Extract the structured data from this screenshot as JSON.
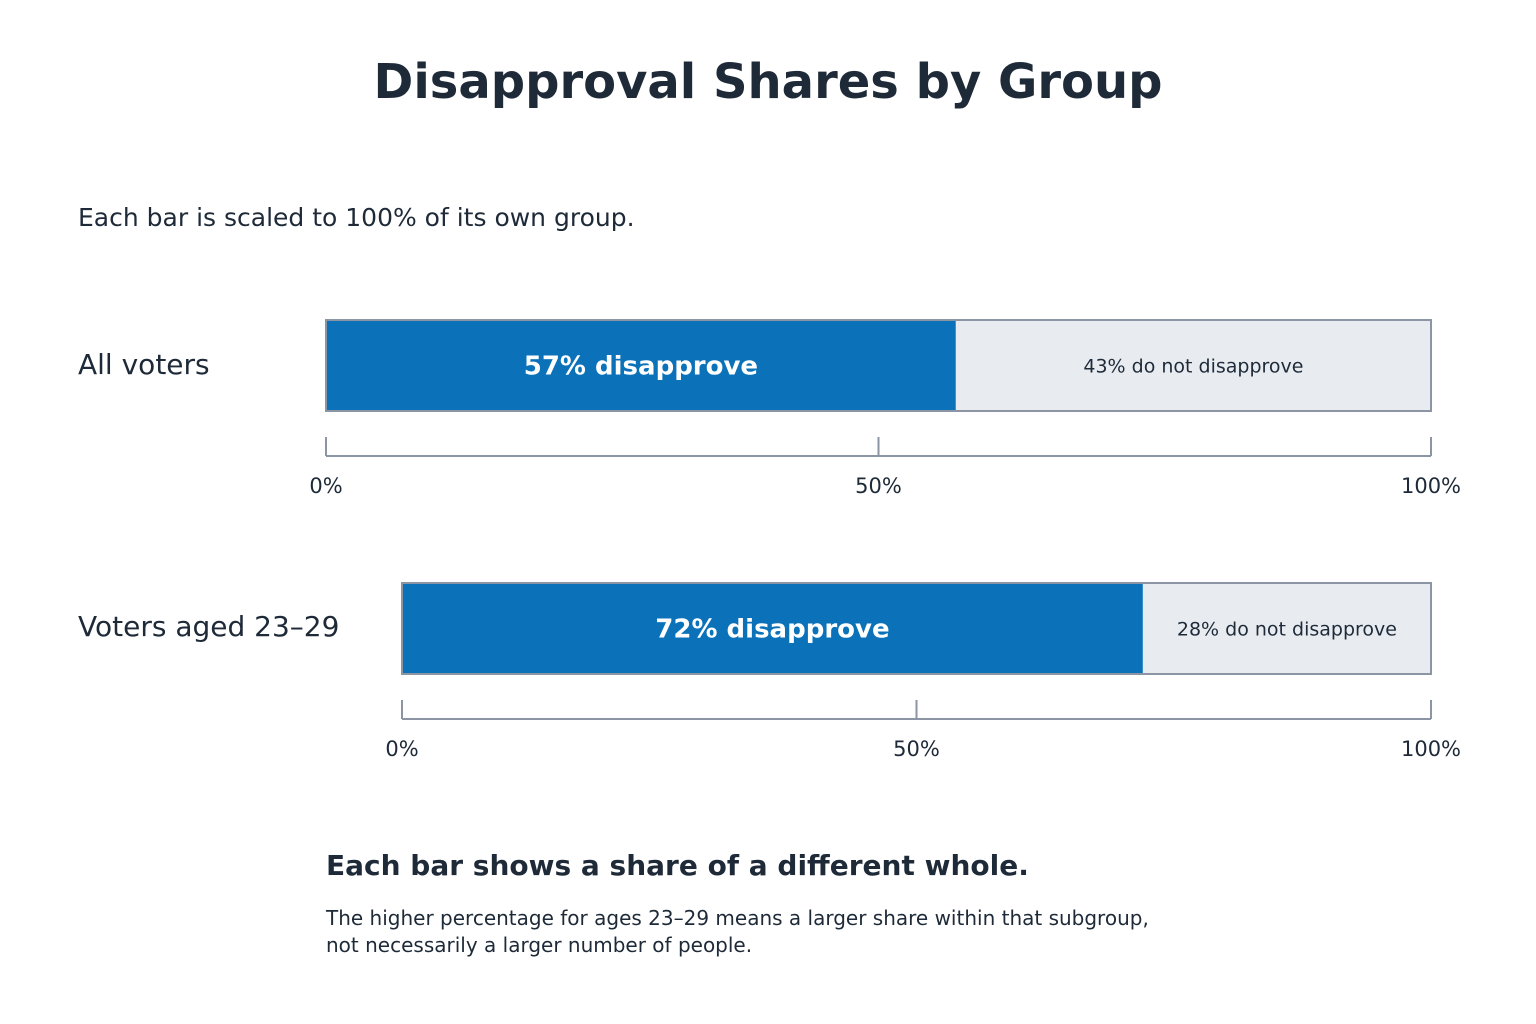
{
  "chart_data": {
    "type": "bar",
    "orientation": "horizontal",
    "stacked": true,
    "title": "Disapproval Shares by Group",
    "subtitle": "Each bar is scaled to 100% of its own group.",
    "categories": [
      "All voters",
      "Voters aged 23–29"
    ],
    "series": [
      {
        "name": "disapprove",
        "values": [
          57,
          72
        ],
        "labels": [
          "57% disapprove",
          "72% disapprove"
        ],
        "color": "#0b72b9"
      },
      {
        "name": "do not disapprove",
        "values": [
          43,
          28
        ],
        "labels": [
          "43% do not disapprove",
          "28% do not disapprove"
        ],
        "color": "#e8ecf1"
      }
    ],
    "xlim": [
      0,
      100
    ],
    "ticks": [
      0,
      50,
      100
    ],
    "tick_labels": [
      "0%",
      "50%",
      "100%"
    ],
    "grid": false,
    "legend": "none",
    "axis_color": "#8b95a3"
  },
  "note": {
    "title": "Each bar shows a share of a different whole.",
    "lines": [
      "The higher percentage for ages 23–29 means a larger share within that subgroup,",
      "not necessarily a larger number of people."
    ]
  }
}
